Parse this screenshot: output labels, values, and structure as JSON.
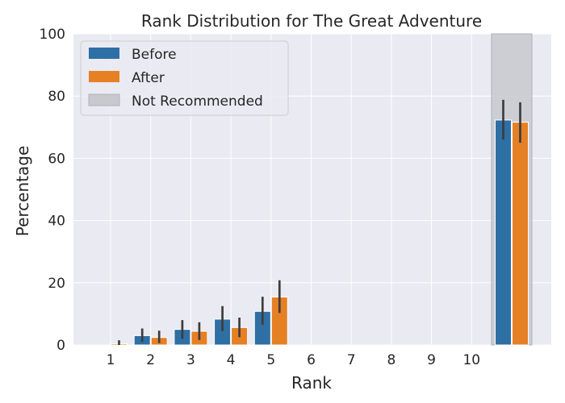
{
  "chart_data": {
    "type": "bar",
    "title": "Rank Distribution for The Great Adventure",
    "xlabel": "Rank",
    "ylabel": "Percentage",
    "ylim": [
      0,
      100
    ],
    "yticks": [
      0,
      20,
      40,
      60,
      80,
      100
    ],
    "categories": [
      "1",
      "2",
      "3",
      "4",
      "5",
      "6",
      "7",
      "8",
      "9",
      "10",
      ""
    ],
    "series": [
      {
        "name": "Before",
        "color": "#2e6fa4",
        "values": [
          0,
          3.0,
          5.0,
          8.3,
          10.8,
          0,
          0,
          0,
          0,
          0,
          72.3
        ],
        "err_low": [
          0,
          1.0,
          2.0,
          4.5,
          6.5,
          0,
          0,
          0,
          0,
          0,
          66.0
        ],
        "err_high": [
          0,
          5.3,
          8.0,
          12.5,
          15.5,
          0,
          0,
          0,
          0,
          0,
          78.8
        ]
      },
      {
        "name": "After",
        "color": "#e58025",
        "values": [
          0.4,
          2.4,
          4.4,
          5.6,
          15.4,
          0,
          0,
          0,
          0,
          0,
          71.6
        ],
        "err_low": [
          0,
          0.6,
          1.6,
          2.5,
          10.3,
          0,
          0,
          0,
          0,
          0,
          65.0
        ],
        "err_high": [
          1.5,
          4.6,
          7.3,
          8.8,
          20.8,
          0,
          0,
          0,
          0,
          0,
          78.0
        ]
      }
    ],
    "shaded_region": {
      "label": "Not Recommended",
      "category_index": 10,
      "color": "#c8c8cf"
    },
    "legend": {
      "position": "top-left",
      "entries": [
        "Before",
        "After",
        "Not Recommended"
      ]
    },
    "grid": true,
    "background": "#eaeaf2"
  }
}
